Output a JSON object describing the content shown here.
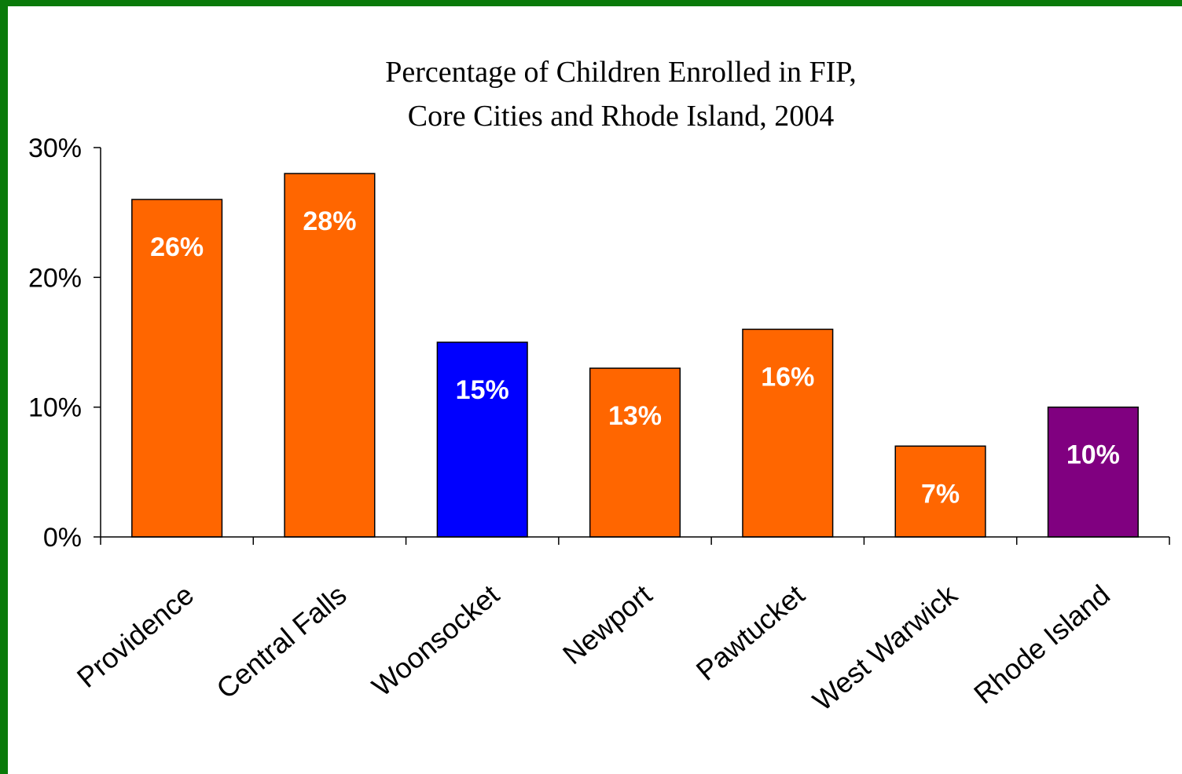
{
  "chart_data": {
    "type": "bar",
    "title_lines": [
      "Percentage of Children Enrolled in FIP,",
      "Core Cities and Rhode Island, 2004"
    ],
    "categories": [
      "Providence",
      "Central Falls",
      "Woonsocket",
      "Newport",
      "Pawtucket",
      "West Warwick",
      "Rhode Island"
    ],
    "values": [
      26,
      28,
      15,
      13,
      16,
      7,
      10
    ],
    "data_labels": [
      "26%",
      "28%",
      "15%",
      "13%",
      "16%",
      "7%",
      "10%"
    ],
    "bar_colors": [
      "#ff6600",
      "#ff6600",
      "#0000ff",
      "#ff6600",
      "#ff6600",
      "#ff6600",
      "#800080"
    ],
    "ylim": [
      0,
      30
    ],
    "yticks": [
      0,
      10,
      20,
      30
    ],
    "ytick_labels": [
      "0%",
      "10%",
      "20%",
      "30%"
    ],
    "xlabel": "",
    "ylabel": "",
    "grid": false,
    "legend": "none"
  },
  "frame_color": "#0a7a0a"
}
